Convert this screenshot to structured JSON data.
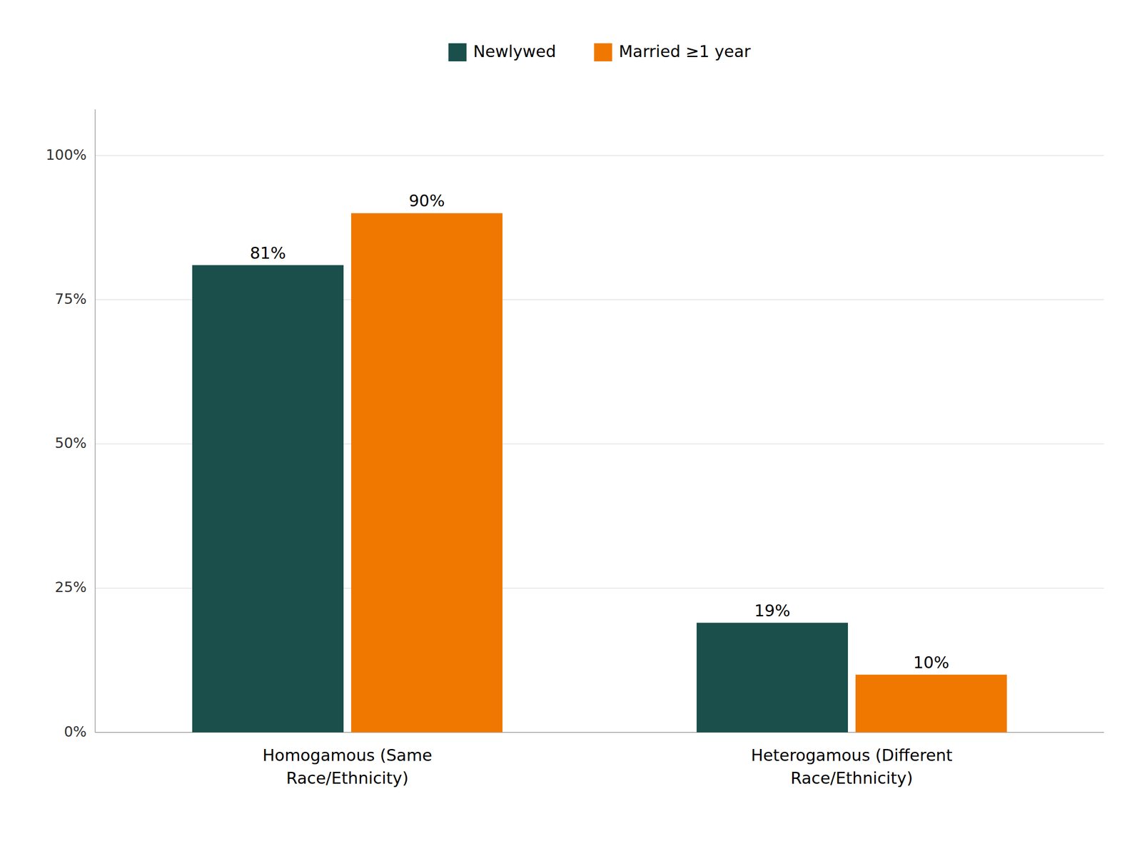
{
  "chart_data": {
    "type": "bar",
    "categories": [
      "Homogamous (Same\nRace/Ethnicity)",
      "Heterogamous (Different\nRace/Ethnicity)"
    ],
    "series": [
      {
        "name": "Newlywed",
        "color": "#1a4f4b",
        "values": [
          81,
          19
        ],
        "value_labels": [
          "81%",
          "19%"
        ]
      },
      {
        "name": "Married ≥1 year",
        "color": "#f07800",
        "values": [
          90,
          10
        ],
        "value_labels": [
          "90%",
          "10%"
        ]
      }
    ],
    "ylim": [
      0,
      108
    ],
    "yticks": [
      {
        "value": 0,
        "label": "0%"
      },
      {
        "value": 25,
        "label": "25%"
      },
      {
        "value": 50,
        "label": "50%"
      },
      {
        "value": 75,
        "label": "75%"
      },
      {
        "value": 100,
        "label": "100%"
      }
    ],
    "grid": true,
    "data_labels": true,
    "legend": "top"
  }
}
